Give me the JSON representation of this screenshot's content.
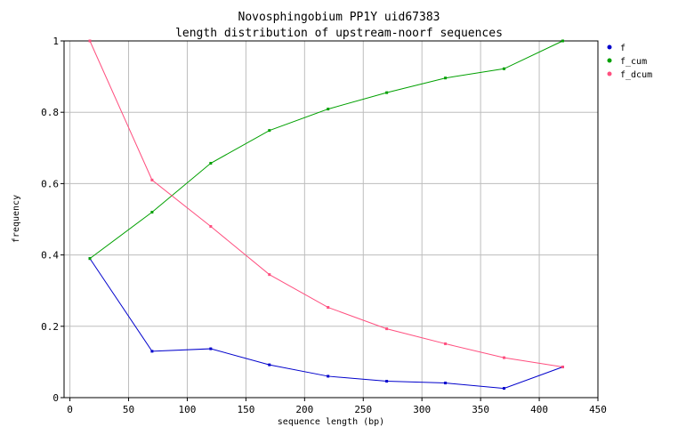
{
  "chart_data": {
    "type": "line",
    "title": "Novosphingobium PP1Y uid67383",
    "subtitle": "length distribution of upstream-noorf sequences",
    "xlabel": "sequence length (bp)",
    "ylabel": "frequency",
    "xlim": [
      -5,
      450
    ],
    "ylim": [
      0,
      1
    ],
    "xticks": [
      "0",
      "50",
      "100",
      "150",
      "200",
      "250",
      "300",
      "350",
      "400",
      "450"
    ],
    "yticks": [
      "0",
      "0.2",
      "0.4",
      "0.6",
      "0.8",
      "1"
    ],
    "grid": true,
    "legend_position": "top-right",
    "x": [
      17,
      70,
      120,
      170,
      220,
      270,
      320,
      370,
      420
    ],
    "series": [
      {
        "name": "f",
        "color": "#0000cc",
        "values": [
          0.39,
          0.13,
          0.137,
          0.092,
          0.06,
          0.046,
          0.041,
          0.026,
          0.086
        ]
      },
      {
        "name": "f_cum",
        "color": "#00a000",
        "values": [
          0.39,
          0.52,
          0.657,
          0.749,
          0.809,
          0.855,
          0.896,
          0.922,
          1.0
        ]
      },
      {
        "name": "f_dcum",
        "color": "#ff4f7f",
        "values": [
          1.0,
          0.61,
          0.48,
          0.345,
          0.253,
          0.193,
          0.151,
          0.112,
          0.086
        ]
      }
    ]
  }
}
